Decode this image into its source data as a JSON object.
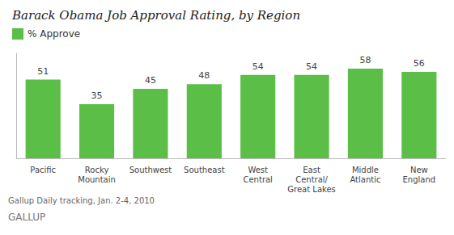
{
  "chart_data": {
    "type": "bar",
    "title": "Barack Obama Job Approval Rating, by Region",
    "categories": [
      "Pacific",
      "Rocky\nMountain",
      "Southwest",
      "Southeast",
      "West\nCentral",
      "East\nCentral/\nGreat Lakes",
      "Middle\nAtlantic",
      "New\nEngland"
    ],
    "series": [
      {
        "name": "% Approve",
        "color": "#5bbf47",
        "values": [
          51,
          35,
          45,
          48,
          54,
          54,
          58,
          56
        ]
      }
    ],
    "ylim": [
      0,
      68
    ],
    "data_labels": true,
    "tick_labels": "x",
    "grid": false,
    "legend": "upper left",
    "annotations": [
      "Gallup Daily tracking, Jan. 2-4, 2010",
      "GALLUP"
    ]
  }
}
